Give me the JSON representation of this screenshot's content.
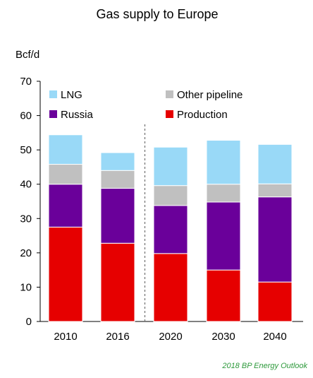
{
  "chart_data": {
    "type": "bar",
    "stacked": true,
    "title": "Gas supply to Europe",
    "ylabel": "Bcf/d",
    "xlabel": "",
    "ylim": [
      0,
      70
    ],
    "yticks": [
      0,
      10,
      20,
      30,
      40,
      50,
      60,
      70
    ],
    "categories": [
      "2010",
      "2016",
      "2020",
      "2030",
      "2040"
    ],
    "series": [
      {
        "name": "Production",
        "color": "#e60000",
        "values": [
          27.5,
          22.8,
          19.8,
          15.0,
          11.5
        ]
      },
      {
        "name": "Russia",
        "color": "#6a009a",
        "values": [
          12.5,
          16.0,
          14.0,
          19.8,
          24.8
        ]
      },
      {
        "name": "Other pipeline",
        "color": "#c0c0c0",
        "values": [
          5.8,
          5.2,
          5.8,
          5.2,
          3.8
        ]
      },
      {
        "name": "LNG",
        "color": "#99d9f7",
        "values": [
          8.6,
          5.2,
          11.2,
          12.8,
          11.5
        ]
      }
    ],
    "legend": [
      "LNG",
      "Other pipeline",
      "Russia",
      "Production"
    ],
    "divider_after_category": "2016",
    "grid": false,
    "source": "2018 BP Energy Outlook"
  }
}
